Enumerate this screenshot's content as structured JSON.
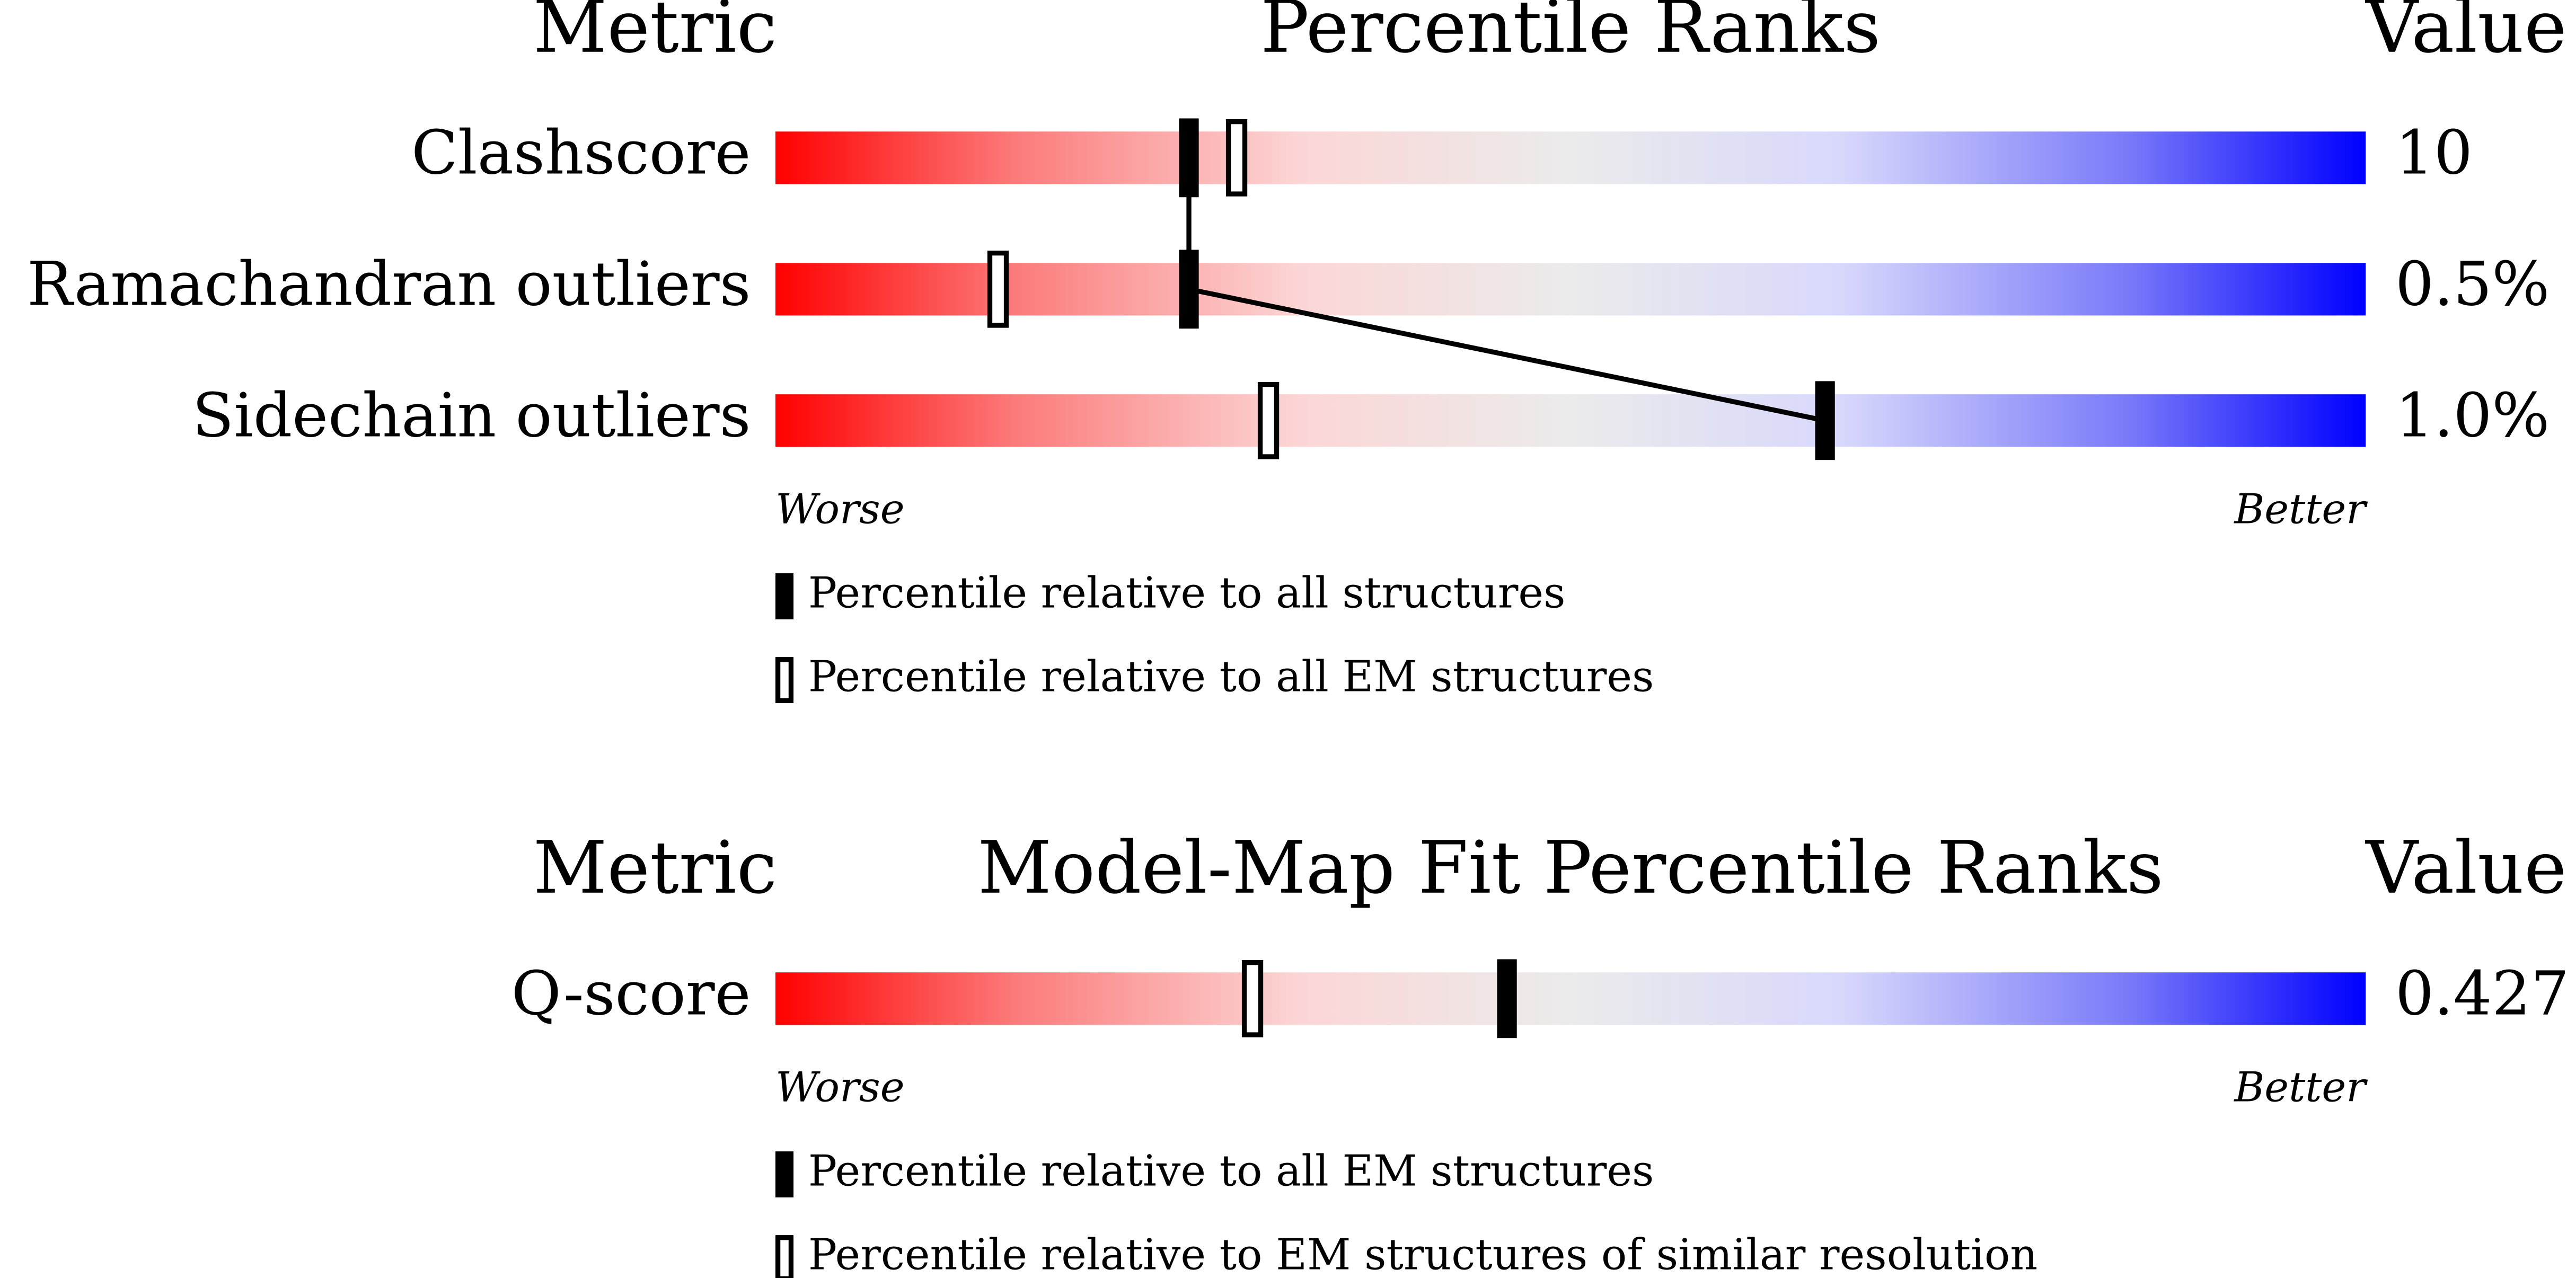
{
  "chart_data": [
    {
      "type": "slider",
      "metric_header": "Metric",
      "title": "Percentile Ranks",
      "value_header": "Value",
      "categories": [
        "Clashscore",
        "Ramachandran outliers",
        "Sidechain outliers"
      ],
      "metric_values": [
        "10",
        "0.5%",
        "1.0%"
      ],
      "series": [
        {
          "name": "Percentile relative to all structures",
          "style": "filled",
          "color": "#000000",
          "values": [
            26,
            26,
            66
          ]
        },
        {
          "name": "Percentile relative to all EM structures",
          "style": "open",
          "color": "#000000",
          "values": [
            29,
            14,
            31
          ]
        }
      ],
      "xlim": [
        0,
        100
      ],
      "worse_label": "Worse",
      "better_label": "Better"
    },
    {
      "type": "slider",
      "metric_header": "Metric",
      "title": "Model-Map Fit Percentile Ranks",
      "value_header": "Value",
      "categories": [
        "Q-score"
      ],
      "metric_values": [
        "0.427"
      ],
      "series": [
        {
          "name": "Percentile relative to all EM structures",
          "style": "filled",
          "color": "#000000",
          "values": [
            46
          ]
        },
        {
          "name": "Percentile relative to EM structures of similar resolution",
          "style": "open",
          "color": "#000000",
          "values": [
            30
          ]
        }
      ],
      "xlim": [
        0,
        100
      ],
      "worse_label": "Worse",
      "better_label": "Better"
    }
  ]
}
